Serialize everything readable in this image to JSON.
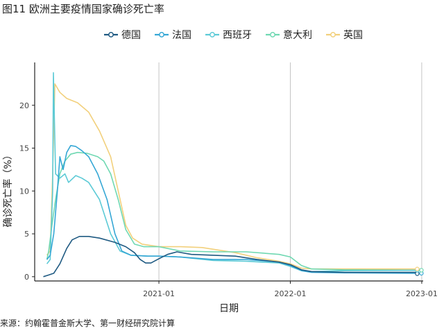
{
  "title": "图11 欧洲主要疫情国家确诊死亡率",
  "source": "来源：约翰霍普金斯大学、第一财经研究院计算",
  "chart_data": {
    "type": "line",
    "xlabel": "日期",
    "ylabel": "确诊死亡率（%）",
    "x_ticks": [
      "2021-01",
      "2022-01",
      "2023-01"
    ],
    "y_ticks": [
      0,
      5,
      10,
      15,
      20
    ],
    "xlim": [
      "2020-01-22",
      "2023-01-05"
    ],
    "ylim": [
      -0.5,
      25
    ],
    "grid": "vertical-major",
    "legend_position": "top",
    "series": [
      {
        "name": "德国",
        "color": "#1f5a82",
        "points": [
          [
            "2020-02-15",
            0
          ],
          [
            "2020-03-01",
            0.2
          ],
          [
            "2020-03-15",
            0.4
          ],
          [
            "2020-04-01",
            1.5
          ],
          [
            "2020-04-20",
            3.3
          ],
          [
            "2020-05-05",
            4.3
          ],
          [
            "2020-05-25",
            4.7
          ],
          [
            "2020-06-20",
            4.7
          ],
          [
            "2020-07-20",
            4.5
          ],
          [
            "2020-09-01",
            4.0
          ],
          [
            "2020-10-01",
            3.5
          ],
          [
            "2020-10-25",
            2.8
          ],
          [
            "2020-11-10",
            2.0
          ],
          [
            "2020-11-25",
            1.6
          ],
          [
            "2020-12-10",
            1.6
          ],
          [
            "2021-01-01",
            2.1
          ],
          [
            "2021-01-25",
            2.6
          ],
          [
            "2021-02-20",
            2.9
          ],
          [
            "2021-04-01",
            2.6
          ],
          [
            "2021-06-01",
            2.5
          ],
          [
            "2021-08-01",
            2.4
          ],
          [
            "2021-10-01",
            2.0
          ],
          [
            "2021-12-01",
            1.7
          ],
          [
            "2022-01-01",
            1.4
          ],
          [
            "2022-02-01",
            0.8
          ],
          [
            "2022-03-01",
            0.6
          ],
          [
            "2022-06-01",
            0.5
          ],
          [
            "2022-12-15",
            0.5
          ],
          [
            "2022-12-31",
            0.35
          ]
        ]
      },
      {
        "name": "法国",
        "color": "#35a7d5",
        "points": [
          [
            "2020-02-25",
            2.0
          ],
          [
            "2020-03-05",
            2.5
          ],
          [
            "2020-03-15",
            5.0
          ],
          [
            "2020-03-25",
            10.0
          ],
          [
            "2020-04-01",
            14.0
          ],
          [
            "2020-04-10",
            12.5
          ],
          [
            "2020-04-20",
            14.5
          ],
          [
            "2020-05-01",
            15.3
          ],
          [
            "2020-05-15",
            15.2
          ],
          [
            "2020-06-01",
            14.7
          ],
          [
            "2020-06-20",
            14.0
          ],
          [
            "2020-07-15",
            12.0
          ],
          [
            "2020-08-10",
            9.0
          ],
          [
            "2020-09-01",
            5.0
          ],
          [
            "2020-09-20",
            3.0
          ],
          [
            "2020-10-15",
            2.5
          ],
          [
            "2020-12-01",
            2.4
          ],
          [
            "2021-01-01",
            2.4
          ],
          [
            "2021-03-01",
            2.3
          ],
          [
            "2021-06-01",
            2.0
          ],
          [
            "2021-09-01",
            2.0
          ],
          [
            "2021-12-01",
            1.7
          ],
          [
            "2022-01-01",
            1.3
          ],
          [
            "2022-02-01",
            0.7
          ],
          [
            "2022-03-01",
            0.5
          ],
          [
            "2022-06-01",
            0.45
          ],
          [
            "2022-12-15",
            0.4
          ],
          [
            "2022-12-31",
            0.4
          ]
        ]
      },
      {
        "name": "西班牙",
        "color": "#5ccad6",
        "points": [
          [
            "2020-02-25",
            1.5
          ],
          [
            "2020-03-05",
            2.0
          ],
          [
            "2020-03-12",
            10.0
          ],
          [
            "2020-03-14",
            23.8
          ],
          [
            "2020-03-20",
            12.0
          ],
          [
            "2020-04-01",
            11.5
          ],
          [
            "2020-04-15",
            12.0
          ],
          [
            "2020-04-25",
            11.0
          ],
          [
            "2020-05-15",
            11.8
          ],
          [
            "2020-06-01",
            11.5
          ],
          [
            "2020-06-20",
            11.0
          ],
          [
            "2020-07-20",
            9.0
          ],
          [
            "2020-08-20",
            5.0
          ],
          [
            "2020-09-15",
            3.0
          ],
          [
            "2020-10-15",
            2.5
          ],
          [
            "2020-12-01",
            2.4
          ],
          [
            "2021-01-01",
            2.4
          ],
          [
            "2021-03-01",
            2.3
          ],
          [
            "2021-06-01",
            1.9
          ],
          [
            "2021-09-01",
            1.8
          ],
          [
            "2021-12-01",
            1.6
          ],
          [
            "2022-01-01",
            1.2
          ],
          [
            "2022-02-01",
            0.7
          ],
          [
            "2022-03-01",
            0.6
          ],
          [
            "2022-06-01",
            0.7
          ],
          [
            "2022-12-15",
            0.75
          ],
          [
            "2022-12-31",
            0.75
          ]
        ]
      },
      {
        "name": "意大利",
        "color": "#6fd8b2",
        "points": [
          [
            "2020-02-25",
            2.0
          ],
          [
            "2020-03-01",
            3.0
          ],
          [
            "2020-03-10",
            6.0
          ],
          [
            "2020-03-20",
            9.0
          ],
          [
            "2020-04-01",
            12.0
          ],
          [
            "2020-04-15",
            13.5
          ],
          [
            "2020-05-01",
            14.3
          ],
          [
            "2020-05-20",
            14.5
          ],
          [
            "2020-06-15",
            14.4
          ],
          [
            "2020-07-15",
            14.0
          ],
          [
            "2020-08-01",
            13.5
          ],
          [
            "2020-08-20",
            12.0
          ],
          [
            "2020-09-10",
            9.0
          ],
          [
            "2020-10-01",
            5.5
          ],
          [
            "2020-10-25",
            3.8
          ],
          [
            "2020-11-20",
            3.5
          ],
          [
            "2021-01-01",
            3.5
          ],
          [
            "2021-03-01",
            3.0
          ],
          [
            "2021-06-01",
            2.9
          ],
          [
            "2021-09-01",
            2.9
          ],
          [
            "2021-12-01",
            2.6
          ],
          [
            "2022-01-01",
            2.3
          ],
          [
            "2022-02-01",
            1.3
          ],
          [
            "2022-03-01",
            0.9
          ],
          [
            "2022-06-01",
            0.8
          ],
          [
            "2022-12-15",
            0.75
          ],
          [
            "2022-12-31",
            0.75
          ]
        ]
      },
      {
        "name": "英国",
        "color": "#f2d07c",
        "points": [
          [
            "2020-02-25",
            2.5
          ],
          [
            "2020-03-05",
            3.0
          ],
          [
            "2020-03-12",
            12.0
          ],
          [
            "2020-03-18",
            22.5
          ],
          [
            "2020-04-01",
            21.5
          ],
          [
            "2020-04-20",
            20.8
          ],
          [
            "2020-05-20",
            20.3
          ],
          [
            "2020-06-20",
            19.2
          ],
          [
            "2020-07-20",
            17.0
          ],
          [
            "2020-08-20",
            14.0
          ],
          [
            "2020-09-10",
            10.0
          ],
          [
            "2020-10-01",
            6.0
          ],
          [
            "2020-10-20",
            4.5
          ],
          [
            "2020-11-15",
            3.8
          ],
          [
            "2021-01-01",
            3.5
          ],
          [
            "2021-03-01",
            3.5
          ],
          [
            "2021-05-01",
            3.4
          ],
          [
            "2021-08-01",
            2.8
          ],
          [
            "2021-10-01",
            2.2
          ],
          [
            "2021-12-01",
            1.8
          ],
          [
            "2022-01-01",
            1.5
          ],
          [
            "2022-02-01",
            1.0
          ],
          [
            "2022-03-01",
            0.9
          ],
          [
            "2022-06-01",
            0.9
          ],
          [
            "2022-12-15",
            0.9
          ],
          [
            "2022-12-31",
            0.9
          ]
        ]
      }
    ]
  }
}
